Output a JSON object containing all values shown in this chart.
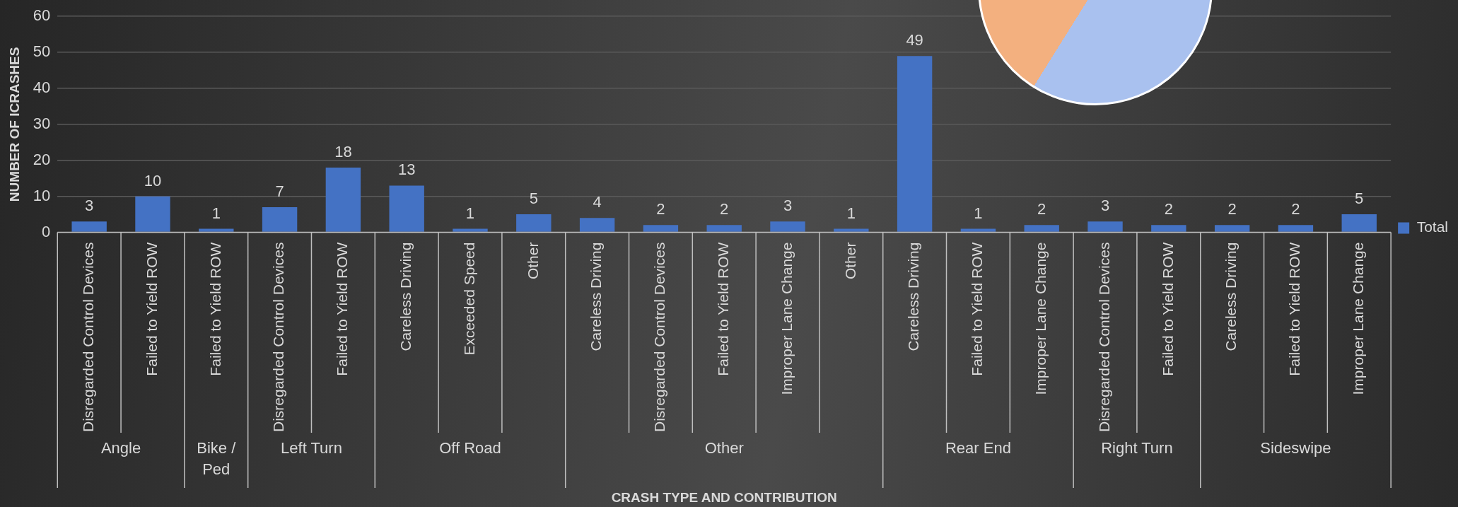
{
  "chart_data": {
    "type": "bar",
    "xlabel": "CRASH TYPE AND CONTRIBUTION",
    "ylabel": "NUMBER OF ICRASHES",
    "categories": [
      "Disregarded Control Devices",
      "Failed to Yield ROW",
      "Failed to Yield ROW",
      "Disregarded Control Devices",
      "Failed to Yield ROW",
      "Careless Driving",
      "Exceeded Speed",
      "Other",
      "Careless Driving",
      "Disregarded Control Devices",
      "Failed to Yield ROW",
      "Improper Lane Change",
      "Other",
      "Careless Driving",
      "Failed to Yield ROW",
      "Improper Lane Change",
      "Disregarded Control Devices",
      "Failed to Yield ROW",
      "Careless Driving",
      "Failed to Yield ROW",
      "Improper Lane Change"
    ],
    "series": [
      {
        "name": "Total",
        "color": "#4472c4",
        "values": [
          3,
          10,
          1,
          7,
          18,
          13,
          1,
          5,
          4,
          2,
          2,
          3,
          1,
          49,
          1,
          2,
          3,
          2,
          2,
          2,
          5
        ]
      }
    ],
    "annotations": [
      "Angle",
      "Bike / Ped",
      "Left Turn",
      "Off Road",
      "Other",
      "Rear End",
      "Right Turn",
      "Sideswipe"
    ],
    "ylim": [
      0,
      60
    ],
    "yticks": [
      0,
      10,
      20,
      30,
      40,
      50,
      60
    ],
    "grid": "y",
    "legend": "right",
    "data_labels": true
  }
}
